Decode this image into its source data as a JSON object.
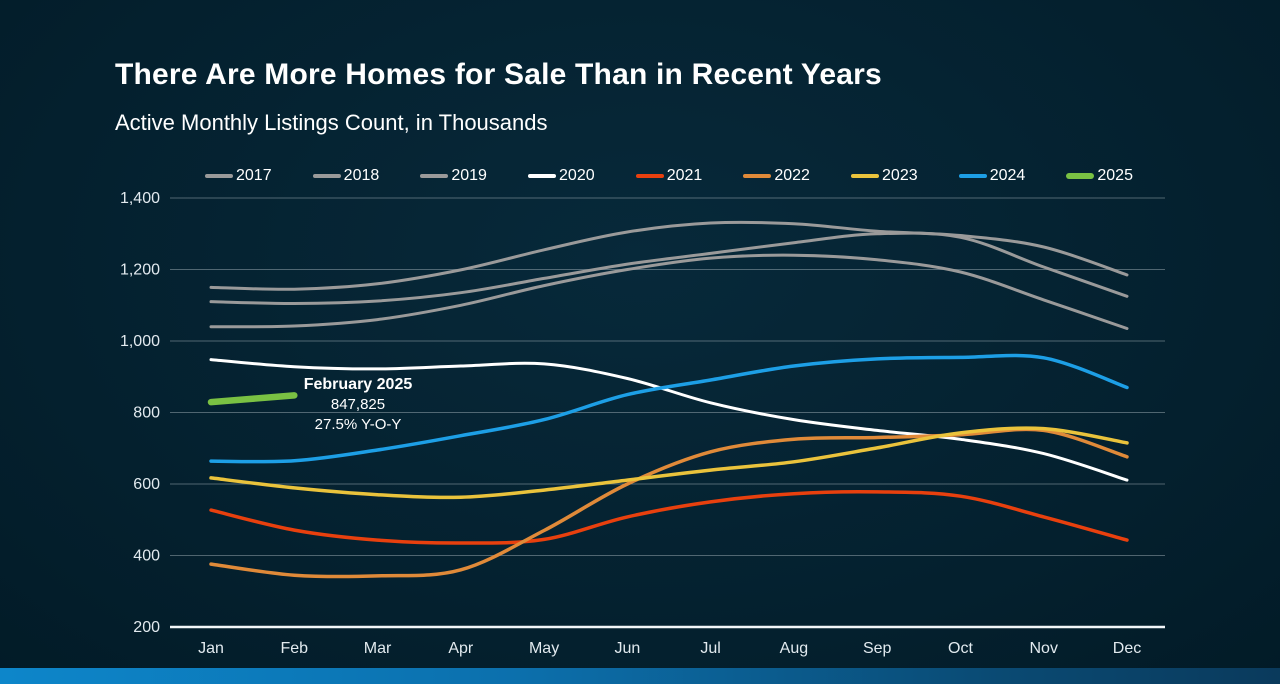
{
  "chart_data": {
    "type": "line",
    "title": "There Are More Homes for Sale Than in Recent Years",
    "subtitle": "Active Monthly Listings Count, in Thousands",
    "categories": [
      "Jan",
      "Feb",
      "Mar",
      "Apr",
      "May",
      "Jun",
      "Jul",
      "Aug",
      "Sep",
      "Oct",
      "Nov",
      "Dec"
    ],
    "ylabel": "",
    "xlabel": "",
    "ylim": [
      200,
      1400
    ],
    "y_ticks": [
      200,
      400,
      600,
      800,
      1000,
      1200,
      1400
    ],
    "y_tick_labels": [
      "200",
      "400",
      "600",
      "800",
      "1,000",
      "1,200",
      "1,400"
    ],
    "grid": true,
    "legend_position": "top",
    "series": [
      {
        "name": "2017",
        "color": "#9a9a9a",
        "width": 3,
        "values": [
          1150,
          1145,
          1160,
          1199,
          1255,
          1305,
          1330,
          1328,
          1307,
          1295,
          1263,
          1185
        ]
      },
      {
        "name": "2018",
        "color": "#9a9a9a",
        "width": 3,
        "values": [
          1110,
          1105,
          1112,
          1135,
          1175,
          1215,
          1245,
          1275,
          1300,
          1290,
          1207,
          1125
        ]
      },
      {
        "name": "2019",
        "color": "#9a9a9a",
        "width": 3,
        "values": [
          1040,
          1042,
          1060,
          1100,
          1155,
          1200,
          1232,
          1240,
          1227,
          1193,
          1115,
          1035
        ]
      },
      {
        "name": "2020",
        "color": "#ffffff",
        "width": 3,
        "values": [
          948,
          928,
          922,
          930,
          936,
          895,
          827,
          780,
          750,
          725,
          685,
          611
        ]
      },
      {
        "name": "2021",
        "color": "#e8400e",
        "width": 3.5,
        "values": [
          527,
          471,
          443,
          435,
          445,
          508,
          550,
          573,
          578,
          566,
          508,
          443
        ]
      },
      {
        "name": "2022",
        "color": "#e08a39",
        "width": 3.5,
        "values": [
          376,
          345,
          343,
          360,
          470,
          600,
          690,
          725,
          730,
          738,
          750,
          676
        ]
      },
      {
        "name": "2023",
        "color": "#eac33c",
        "width": 3.5,
        "values": [
          617,
          589,
          570,
          563,
          583,
          611,
          639,
          662,
          701,
          743,
          755,
          715
        ]
      },
      {
        "name": "2024",
        "color": "#1d9fe6",
        "width": 3.5,
        "values": [
          664,
          665,
          695,
          735,
          780,
          850,
          891,
          930,
          950,
          954,
          953,
          870
        ]
      },
      {
        "name": "2025",
        "color": "#7ac143",
        "width": 6.5,
        "values": [
          829,
          847.825,
          null,
          null,
          null,
          null,
          null,
          null,
          null,
          null,
          null,
          null
        ]
      }
    ],
    "annotation": {
      "title": "February 2025",
      "value": "847,825",
      "yoy": "27.5% Y-O-Y"
    }
  }
}
